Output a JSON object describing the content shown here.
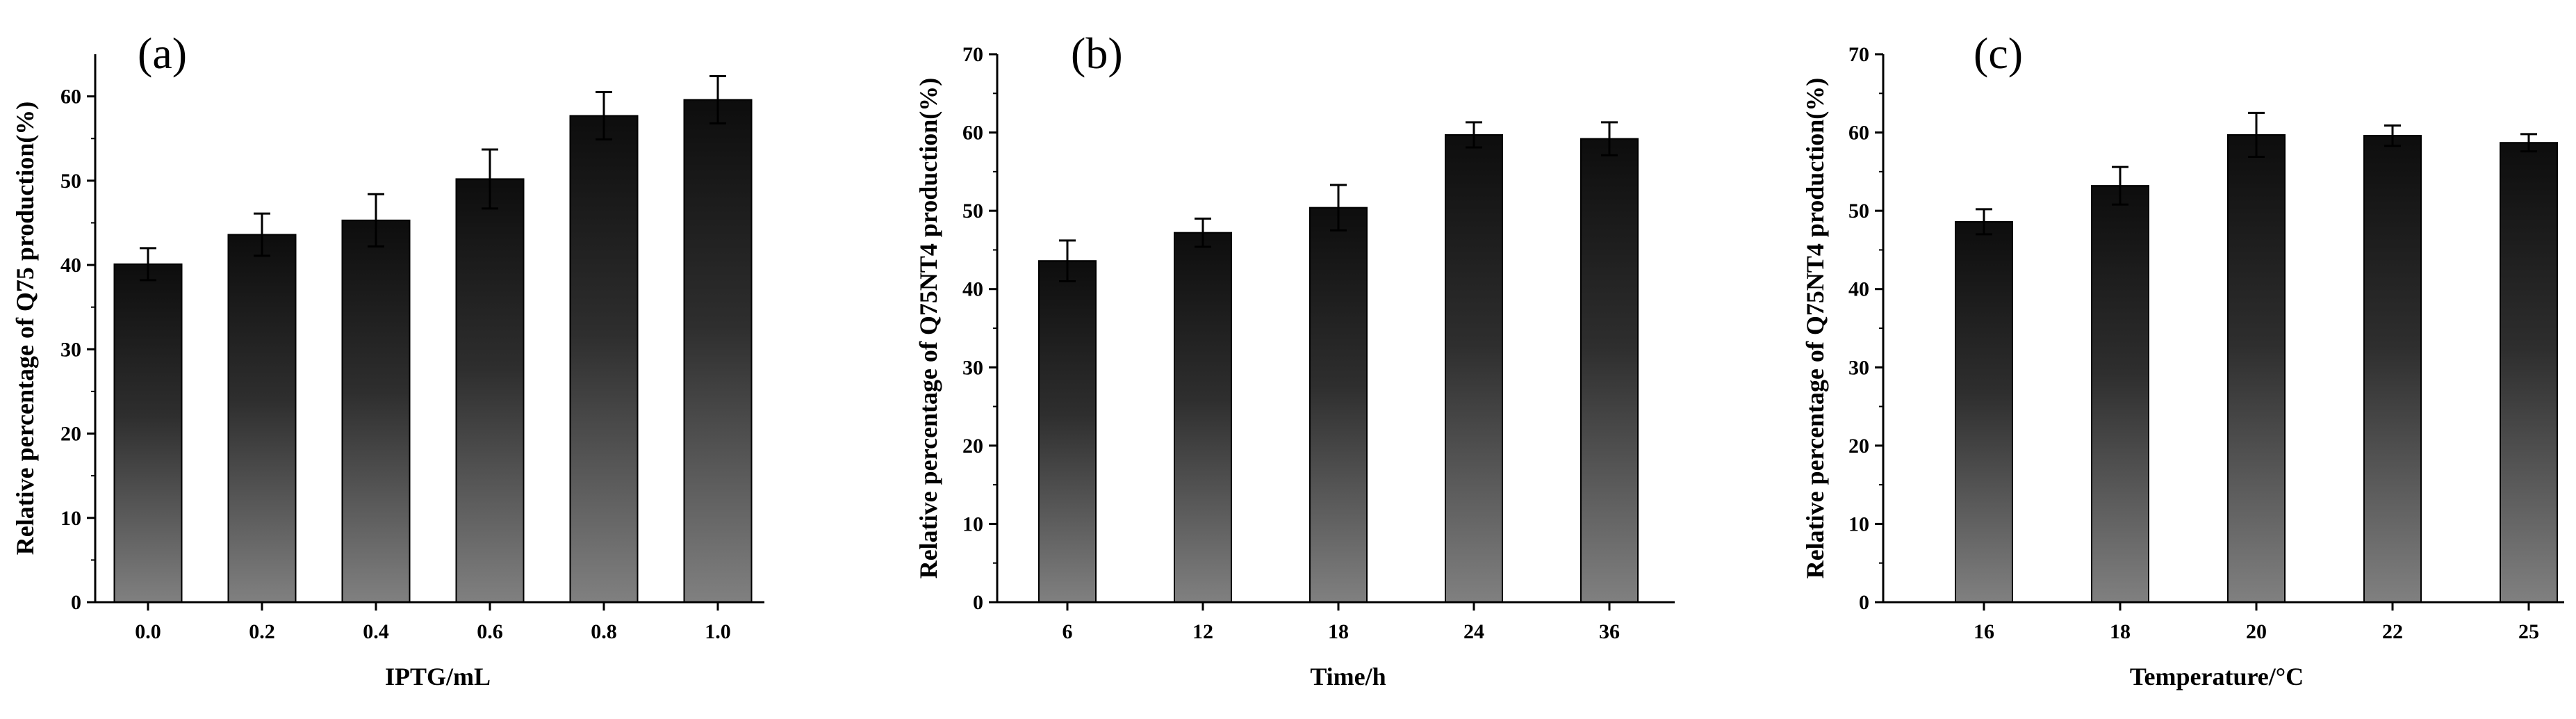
{
  "colors": {
    "bar_top": "#0d0d0d",
    "bar_bottom": "#808080",
    "axis": "#000000"
  },
  "chart_data": [
    {
      "type": "bar",
      "panel_label": "(a)",
      "categories": [
        "0.0",
        "0.2",
        "0.4",
        "0.6",
        "0.8",
        "1.0"
      ],
      "values": [
        40.1,
        43.6,
        45.3,
        50.2,
        57.7,
        59.6
      ],
      "errors": [
        1.9,
        2.5,
        3.1,
        3.5,
        2.8,
        2.8
      ],
      "xlabel": "IPTG/mL",
      "ylabel": "Relative  percentage of Q75 production(%)",
      "ylim": [
        0,
        65
      ],
      "yticks": [
        0,
        10,
        20,
        30,
        40,
        50,
        60
      ],
      "ytick_labels": [
        "0",
        "10",
        "20",
        "30",
        "40",
        "50",
        "60"
      ],
      "grid": false
    },
    {
      "type": "bar",
      "panel_label": "(b)",
      "categories": [
        "6",
        "12",
        "18",
        "24",
        "36"
      ],
      "values": [
        43.6,
        47.2,
        50.4,
        59.7,
        59.2
      ],
      "errors": [
        2.6,
        1.8,
        2.9,
        1.6,
        2.1
      ],
      "xlabel": "Time/h",
      "ylabel": "Relative percentage of Q75NT4 production(%)",
      "ylim": [
        0,
        70
      ],
      "yticks": [
        0,
        10,
        20,
        30,
        40,
        50,
        60,
        70
      ],
      "ytick_labels": [
        "0",
        "10",
        "20",
        "30",
        "40",
        "50",
        "60",
        "70"
      ],
      "grid": false
    },
    {
      "type": "bar",
      "panel_label": "(c)",
      "categories": [
        "16",
        "18",
        "20",
        "22",
        "25"
      ],
      "values": [
        48.6,
        53.2,
        59.7,
        59.6,
        58.7
      ],
      "errors": [
        1.6,
        2.4,
        2.8,
        1.3,
        1.1
      ],
      "xlabel": "Temperature/°C",
      "ylabel": "Relative percentage of Q75NT4 production(%)",
      "ylim": [
        0,
        70
      ],
      "yticks": [
        0,
        10,
        20,
        30,
        40,
        50,
        60,
        70
      ],
      "ytick_labels": [
        "0",
        "10",
        "20",
        "30",
        "40",
        "50",
        "60",
        "70"
      ],
      "grid": false
    }
  ]
}
